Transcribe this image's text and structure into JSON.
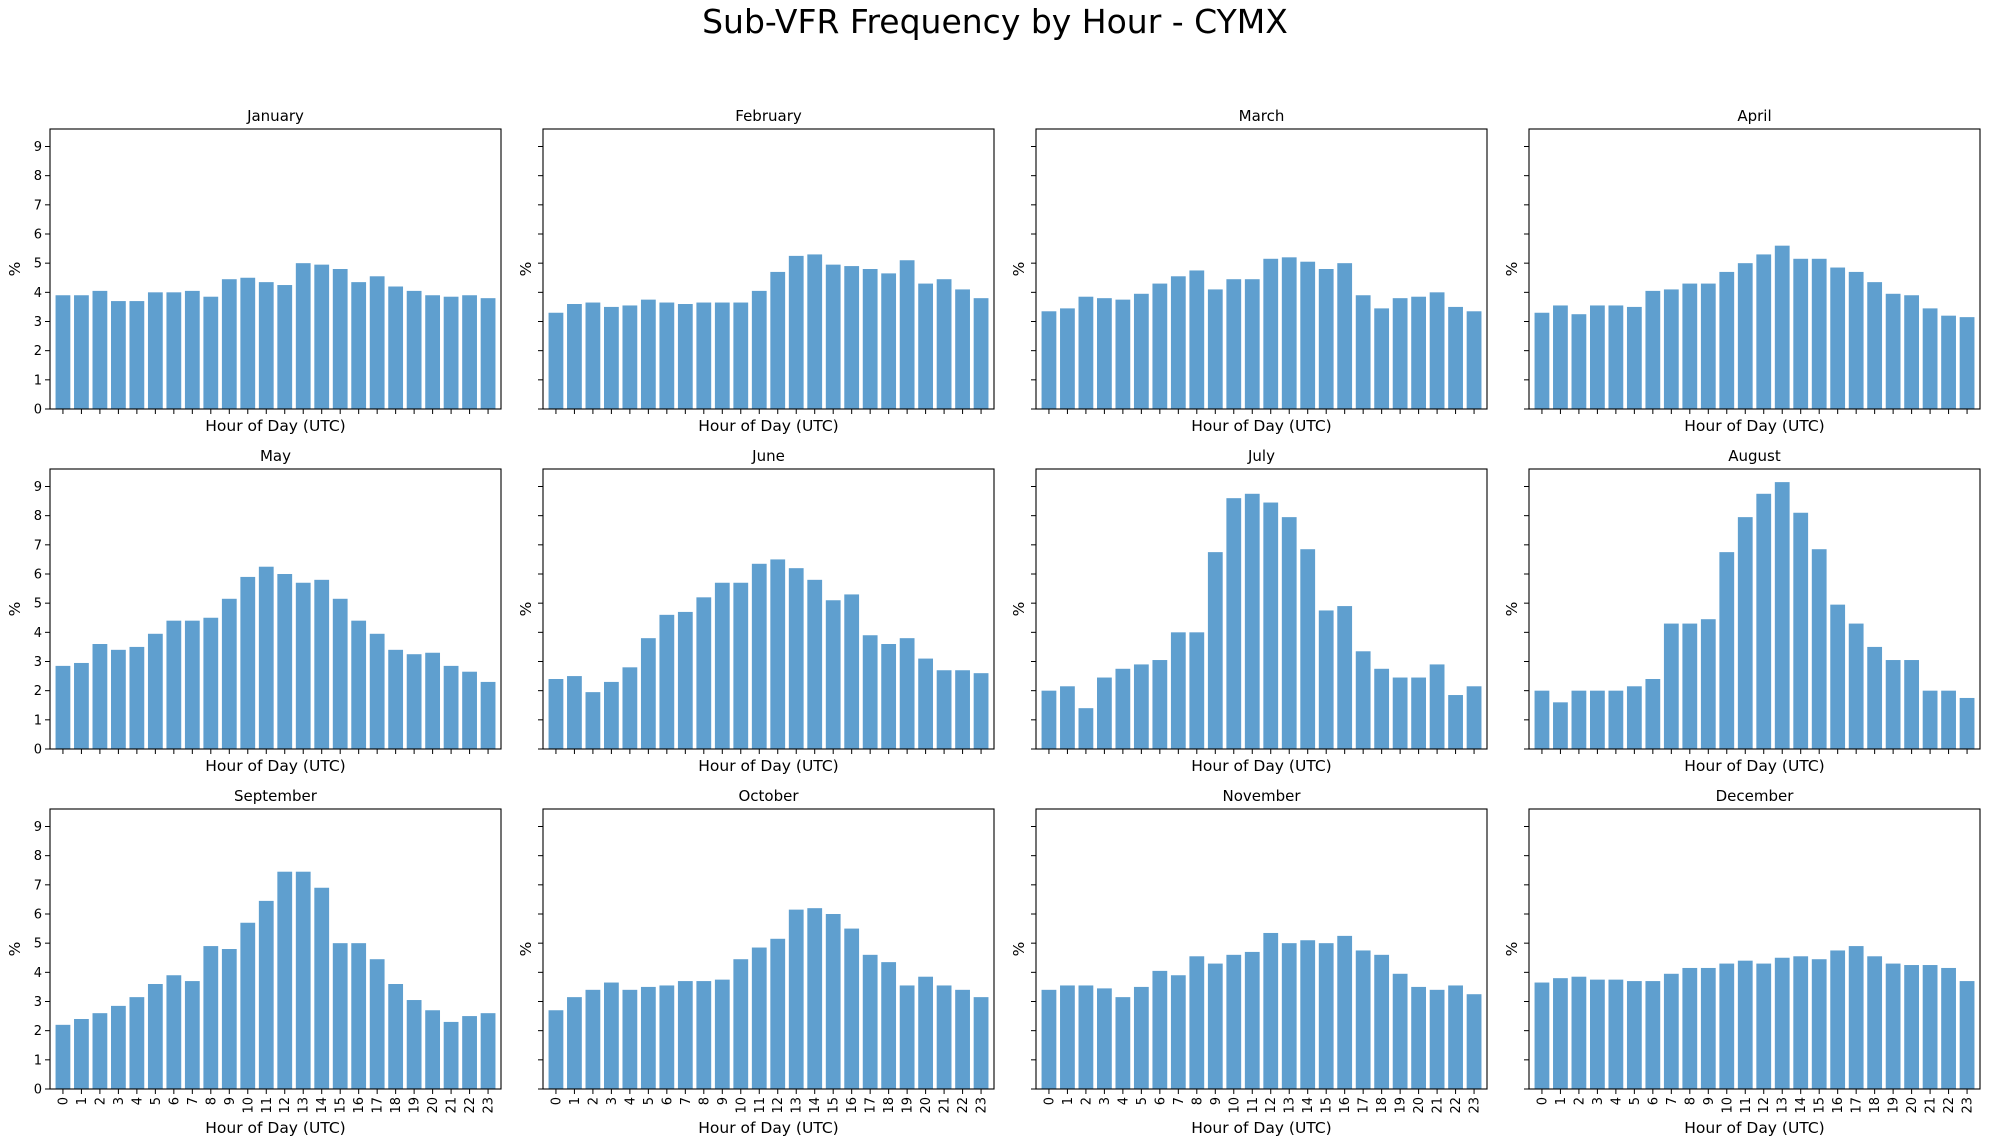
{
  "chart_data": {
    "type": "bar",
    "title": "Sub-VFR Frequency by Hour - CYMX",
    "xlabel": "Hour of Day (UTC)",
    "ylabel": "%",
    "ylim": [
      0,
      9.6
    ],
    "yticks": [
      0,
      1,
      2,
      3,
      4,
      5,
      6,
      7,
      8,
      9
    ],
    "categories": [
      "0",
      "1",
      "2",
      "3",
      "4",
      "5",
      "6",
      "7",
      "8",
      "9",
      "10",
      "11",
      "12",
      "13",
      "14",
      "15",
      "16",
      "17",
      "18",
      "19",
      "20",
      "21",
      "22",
      "23"
    ],
    "bar_color": "#5f9fcf",
    "grid": false,
    "panels": [
      {
        "title": "January",
        "values": [
          3.9,
          3.9,
          4.05,
          3.7,
          3.7,
          4.0,
          4.0,
          4.05,
          3.85,
          4.45,
          4.5,
          4.35,
          4.25,
          5.0,
          4.95,
          4.8,
          4.35,
          4.55,
          4.2,
          4.05,
          3.9,
          3.85,
          3.9,
          3.8
        ]
      },
      {
        "title": "February",
        "values": [
          3.3,
          3.6,
          3.65,
          3.5,
          3.55,
          3.75,
          3.65,
          3.6,
          3.65,
          3.65,
          3.65,
          4.05,
          4.7,
          5.25,
          5.3,
          4.95,
          4.9,
          4.8,
          4.65,
          5.1,
          4.3,
          4.45,
          4.1,
          3.8
        ]
      },
      {
        "title": "March",
        "values": [
          3.35,
          3.45,
          3.85,
          3.8,
          3.75,
          3.95,
          4.3,
          4.55,
          4.75,
          4.1,
          4.45,
          4.45,
          5.15,
          5.2,
          5.05,
          4.8,
          5.0,
          3.9,
          3.45,
          3.8,
          3.85,
          4.0,
          3.5,
          3.35
        ]
      },
      {
        "title": "April",
        "values": [
          3.3,
          3.55,
          3.25,
          3.55,
          3.55,
          3.5,
          4.05,
          4.1,
          4.3,
          4.3,
          4.7,
          5.0,
          5.3,
          5.6,
          5.15,
          5.15,
          4.85,
          4.7,
          4.35,
          3.95,
          3.9,
          3.45,
          3.2,
          3.15
        ]
      },
      {
        "title": "May",
        "values": [
          2.85,
          2.95,
          3.6,
          3.4,
          3.5,
          3.95,
          4.4,
          4.4,
          4.5,
          5.15,
          5.9,
          6.25,
          6.0,
          5.7,
          5.8,
          5.15,
          4.4,
          3.95,
          3.4,
          3.25,
          3.3,
          2.85,
          2.65,
          2.3
        ]
      },
      {
        "title": "June",
        "values": [
          2.4,
          2.5,
          1.95,
          2.3,
          2.8,
          3.8,
          4.6,
          4.7,
          5.2,
          5.7,
          5.7,
          6.35,
          6.5,
          6.2,
          5.8,
          5.1,
          5.3,
          3.9,
          3.6,
          3.8,
          3.1,
          2.7,
          2.7,
          2.6
        ]
      },
      {
        "title": "July",
        "values": [
          2.0,
          2.15,
          1.4,
          2.45,
          2.75,
          2.9,
          3.05,
          4.0,
          4.0,
          6.75,
          8.6,
          8.75,
          8.45,
          7.95,
          6.85,
          4.75,
          4.9,
          3.35,
          2.75,
          2.45,
          2.45,
          2.9,
          1.85,
          2.15
        ]
      },
      {
        "title": "August",
        "values": [
          2.0,
          1.6,
          2.0,
          2.0,
          2.0,
          2.15,
          2.4,
          4.3,
          4.3,
          4.45,
          6.75,
          7.95,
          8.75,
          9.15,
          8.1,
          6.85,
          4.95,
          4.3,
          3.5,
          3.05,
          3.05,
          2.0,
          2.0,
          1.75
        ]
      },
      {
        "title": "September",
        "values": [
          2.2,
          2.4,
          2.6,
          2.85,
          3.15,
          3.6,
          3.9,
          3.7,
          4.9,
          4.8,
          5.7,
          6.45,
          7.45,
          7.45,
          6.9,
          5.0,
          5.0,
          4.45,
          3.6,
          3.05,
          2.7,
          2.3,
          2.5,
          2.6
        ]
      },
      {
        "title": "October",
        "values": [
          2.7,
          3.15,
          3.4,
          3.65,
          3.4,
          3.5,
          3.55,
          3.7,
          3.7,
          3.75,
          4.45,
          4.85,
          5.15,
          6.15,
          6.2,
          6.0,
          5.5,
          4.6,
          4.35,
          3.55,
          3.85,
          3.55,
          3.4,
          3.15
        ]
      },
      {
        "title": "November",
        "values": [
          3.4,
          3.55,
          3.55,
          3.45,
          3.15,
          3.5,
          4.05,
          3.9,
          4.55,
          4.3,
          4.6,
          4.7,
          5.35,
          5.0,
          5.1,
          5.0,
          5.25,
          4.75,
          4.6,
          3.95,
          3.5,
          3.4,
          3.55,
          3.25
        ]
      },
      {
        "title": "December",
        "values": [
          3.65,
          3.8,
          3.85,
          3.75,
          3.75,
          3.7,
          3.7,
          3.95,
          4.15,
          4.15,
          4.3,
          4.4,
          4.3,
          4.5,
          4.55,
          4.45,
          4.75,
          4.9,
          4.55,
          4.3,
          4.25,
          4.25,
          4.15,
          3.7
        ]
      }
    ]
  }
}
